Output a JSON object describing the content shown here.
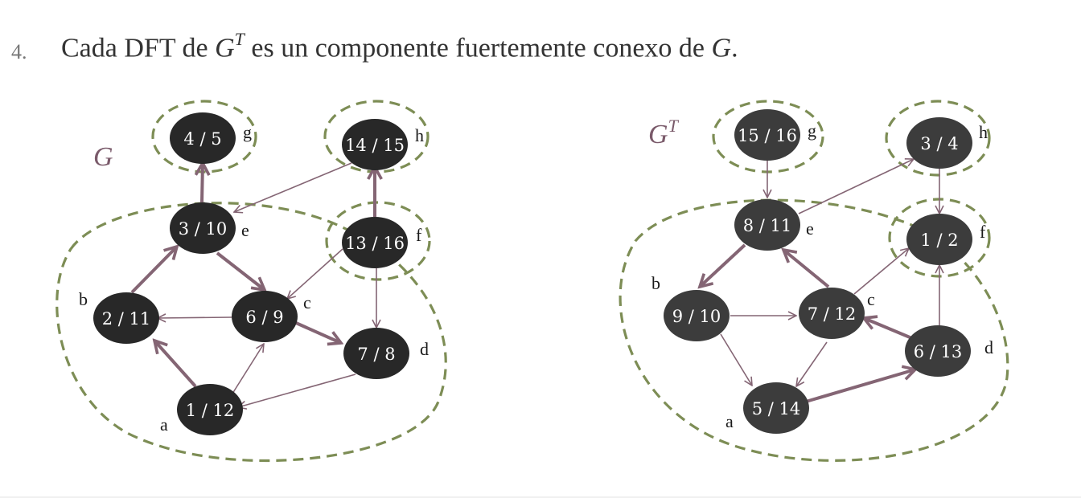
{
  "heading": {
    "number": "4.",
    "text_before": "Cada DFT de ",
    "math_g": "G",
    "math_t": "T",
    "text_middle": " es un componente fuertemente conexo de ",
    "math_g2": "G",
    "text_end": "."
  },
  "colors": {
    "node_g": "#282828",
    "node_gt": "#3c3c3c",
    "edge": "#846574",
    "cluster": "#7d8d55",
    "title": "#7a5a6a"
  },
  "graphs": [
    {
      "name": "g",
      "title": "G",
      "title_sup": "",
      "nodes": [
        {
          "id": "g",
          "label": "4 / 5",
          "letter": "g"
        },
        {
          "id": "h",
          "label": "14 / 15",
          "letter": "h"
        },
        {
          "id": "e",
          "label": "3 / 10",
          "letter": "e"
        },
        {
          "id": "f",
          "label": "13 / 16",
          "letter": "f"
        },
        {
          "id": "b",
          "label": "2 / 11",
          "letter": "b"
        },
        {
          "id": "c",
          "label": "6 / 9",
          "letter": "c"
        },
        {
          "id": "d",
          "label": "7 / 8",
          "letter": "d"
        },
        {
          "id": "a",
          "label": "1 / 12",
          "letter": "a"
        }
      ]
    },
    {
      "name": "gt",
      "title": "G",
      "title_sup": "T",
      "nodes": [
        {
          "id": "g",
          "label": "15 / 16",
          "letter": "g"
        },
        {
          "id": "h",
          "label": "3 / 4",
          "letter": "h"
        },
        {
          "id": "e",
          "label": "8 / 11",
          "letter": "e"
        },
        {
          "id": "f",
          "label": "1 / 2",
          "letter": "f"
        },
        {
          "id": "b",
          "label": "9 / 10",
          "letter": "b"
        },
        {
          "id": "c",
          "label": "7 / 12",
          "letter": "c"
        },
        {
          "id": "d",
          "label": "6 / 13",
          "letter": "d"
        },
        {
          "id": "a",
          "label": "5 / 14",
          "letter": "a"
        }
      ]
    }
  ]
}
